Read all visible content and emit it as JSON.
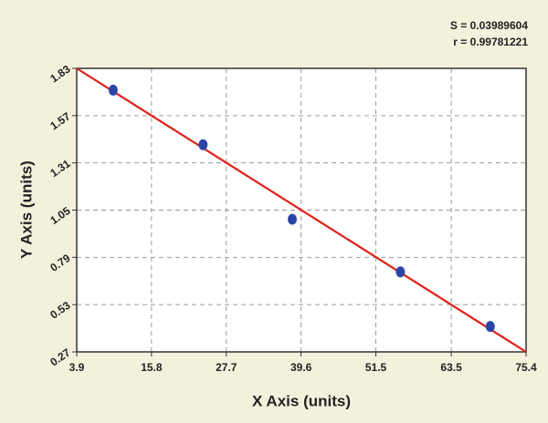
{
  "chart_data": {
    "type": "scatter",
    "annotations": [
      "S = 0.03989604",
      "r = 0.99781221"
    ],
    "x_label": "X Axis (units)",
    "y_label": "Y Axis (units)",
    "x": [
      9.7,
      24.0,
      38.2,
      55.4,
      69.7
    ],
    "values": [
      1.71,
      1.41,
      1.0,
      0.71,
      0.41
    ],
    "color": "#2b46a6",
    "fit": {
      "x": [
        3.9,
        75.4
      ],
      "y": [
        1.83,
        0.27
      ],
      "color": "#e0201a"
    },
    "xlim": [
      3.9,
      75.4
    ],
    "xticks": [
      3.9,
      15.8,
      27.7,
      39.6,
      51.5,
      63.5,
      75.4
    ],
    "ylim": [
      0.27,
      1.83
    ],
    "yticks": [
      0.27,
      0.53,
      0.79,
      1.05,
      1.31,
      1.57,
      1.83
    ],
    "grid": true
  }
}
